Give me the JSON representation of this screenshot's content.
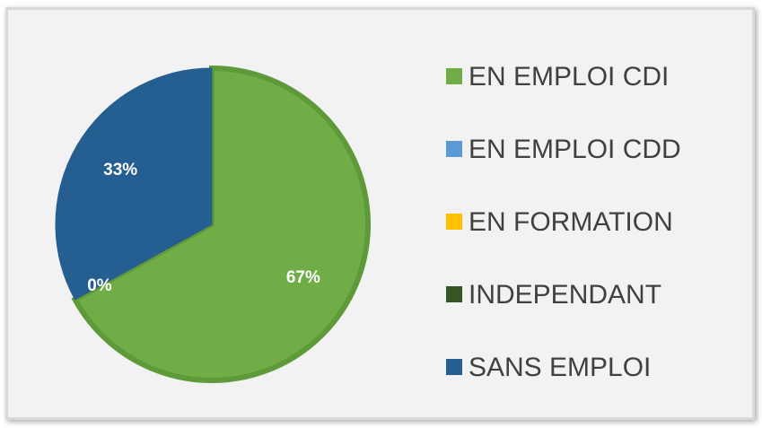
{
  "chart_data": {
    "type": "pie",
    "categories": [
      "EN EMPLOI CDI",
      "EN EMPLOI CDD",
      "EN FORMATION",
      "INDEPENDANT",
      "SANS EMPLOI"
    ],
    "values": [
      67,
      0,
      0,
      0,
      33
    ],
    "value_labels": [
      "67%",
      "0%",
      null,
      null,
      "33%"
    ],
    "colors": [
      "#70ad47",
      "#5b9bd5",
      "#ffc000",
      "#375623",
      "#255e91"
    ],
    "legend": "right"
  }
}
